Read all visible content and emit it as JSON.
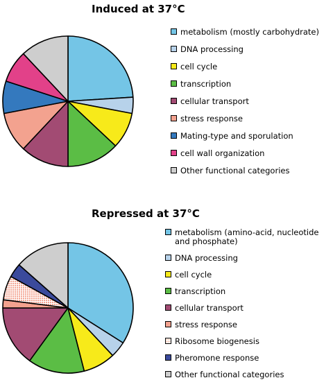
{
  "chart_data": [
    {
      "type": "pie",
      "title": "Induced at 37°C",
      "slices": [
        {
          "label": "metabolism (mostly carbohydrate)",
          "value": 24,
          "color": "#74c5e6"
        },
        {
          "label": "DNA processing",
          "value": 4,
          "color": "#b7d2ea"
        },
        {
          "label": "cell cycle",
          "value": 9,
          "color": "#f7ea1a"
        },
        {
          "label": "transcription",
          "value": 13,
          "color": "#5bbd45"
        },
        {
          "label": "cellular transport",
          "value": 12,
          "color": "#a24b73"
        },
        {
          "label": "stress response",
          "value": 10,
          "color": "#f3a28f"
        },
        {
          "label": "Mating-type and sporulation",
          "value": 8,
          "color": "#3479be"
        },
        {
          "label": "cell wall organization",
          "value": 8,
          "color": "#e24189"
        },
        {
          "label": "Other functional categories",
          "value": 12,
          "color": "#cecece"
        }
      ],
      "legend": "right"
    },
    {
      "type": "pie",
      "title": "Repressed at 37°C",
      "slices": [
        {
          "label": "metabolism (amino-acid, nucleotide and phosphate)",
          "value": 34,
          "color": "#74c5e6"
        },
        {
          "label": "DNA processing",
          "value": 4,
          "color": "#b7d2ea"
        },
        {
          "label": "cell cycle",
          "value": 8,
          "color": "#f7ea1a"
        },
        {
          "label": "transcription",
          "value": 14,
          "color": "#5bbd45"
        },
        {
          "label": "cellular transport",
          "value": 15,
          "color": "#a24b73"
        },
        {
          "label": "stress response",
          "value": 2,
          "color": "#f3a28f"
        },
        {
          "label": "Ribosome biogenesis",
          "value": 6,
          "color": "#f6b89f",
          "pattern": "dotted"
        },
        {
          "label": "Pheromone response",
          "value": 3.5,
          "color": "#3b4a9c"
        },
        {
          "label": "Other functional categories",
          "value": 13.5,
          "color": "#cecece"
        }
      ],
      "legend": "right"
    }
  ]
}
